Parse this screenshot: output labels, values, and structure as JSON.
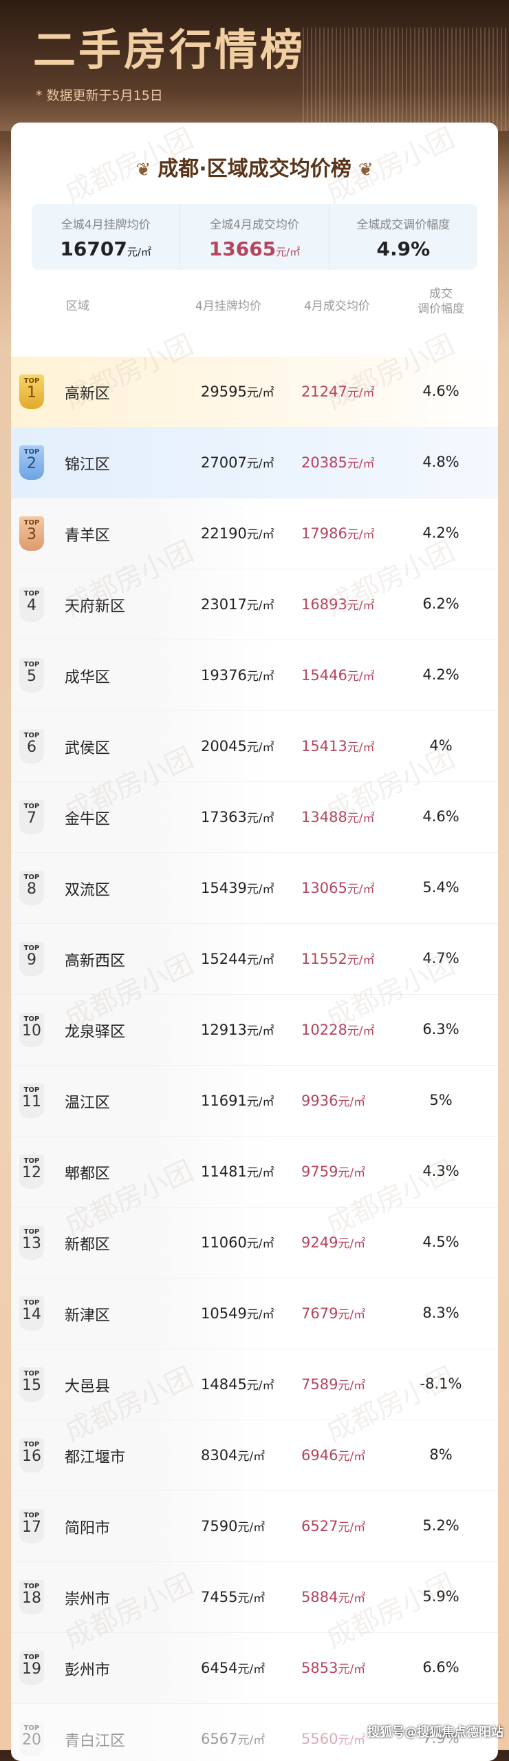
{
  "header": {
    "title": "二手房行情榜",
    "subtitle": "* 数据更新于5月15日"
  },
  "card": {
    "title": "成都·区域成交均价榜"
  },
  "summary": [
    {
      "label": "全城4月挂牌均价",
      "value": "16707",
      "unit": "元/㎡"
    },
    {
      "label": "全城4月成交均价",
      "value": "13665",
      "unit": "元/㎡"
    },
    {
      "label": "全城成交调价幅度",
      "value": "4.9%",
      "unit": ""
    }
  ],
  "columns": {
    "region": "区域",
    "listing": "4月挂牌均价",
    "deal": "4月成交均价",
    "pct1": "成交",
    "pct2": "调价幅度"
  },
  "unit": "元/㎡",
  "top_label": "TOP",
  "rows": [
    {
      "rank": "1",
      "name": "高新区",
      "listing": "29595",
      "deal": "21247",
      "pct": "4.6%"
    },
    {
      "rank": "2",
      "name": "锦江区",
      "listing": "27007",
      "deal": "20385",
      "pct": "4.8%"
    },
    {
      "rank": "3",
      "name": "青羊区",
      "listing": "22190",
      "deal": "17986",
      "pct": "4.2%"
    },
    {
      "rank": "4",
      "name": "天府新区",
      "listing": "23017",
      "deal": "16893",
      "pct": "6.2%"
    },
    {
      "rank": "5",
      "name": "成华区",
      "listing": "19376",
      "deal": "15446",
      "pct": "4.2%"
    },
    {
      "rank": "6",
      "name": "武侯区",
      "listing": "20045",
      "deal": "15413",
      "pct": "4%"
    },
    {
      "rank": "7",
      "name": "金牛区",
      "listing": "17363",
      "deal": "13488",
      "pct": "4.6%"
    },
    {
      "rank": "8",
      "name": "双流区",
      "listing": "15439",
      "deal": "13065",
      "pct": "5.4%"
    },
    {
      "rank": "9",
      "name": "高新西区",
      "listing": "15244",
      "deal": "11552",
      "pct": "4.7%"
    },
    {
      "rank": "10",
      "name": "龙泉驿区",
      "listing": "12913",
      "deal": "10228",
      "pct": "6.3%"
    },
    {
      "rank": "11",
      "name": "温江区",
      "listing": "11691",
      "deal": "9936",
      "pct": "5%"
    },
    {
      "rank": "12",
      "name": "郫都区",
      "listing": "11481",
      "deal": "9759",
      "pct": "4.3%"
    },
    {
      "rank": "13",
      "name": "新都区",
      "listing": "11060",
      "deal": "9249",
      "pct": "4.5%"
    },
    {
      "rank": "14",
      "name": "新津区",
      "listing": "10549",
      "deal": "7679",
      "pct": "8.3%"
    },
    {
      "rank": "15",
      "name": "大邑县",
      "listing": "14845",
      "deal": "7589",
      "pct": "-8.1%"
    },
    {
      "rank": "16",
      "name": "都江堰市",
      "listing": "8304",
      "deal": "6946",
      "pct": "8%"
    },
    {
      "rank": "17",
      "name": "简阳市",
      "listing": "7590",
      "deal": "6527",
      "pct": "5.2%"
    },
    {
      "rank": "18",
      "name": "崇州市",
      "listing": "7455",
      "deal": "5884",
      "pct": "5.9%"
    },
    {
      "rank": "19",
      "name": "彭州市",
      "listing": "6454",
      "deal": "5853",
      "pct": "6.6%"
    },
    {
      "rank": "20",
      "name": "青白江区",
      "listing": "6567",
      "deal": "5560",
      "pct": "7.9%"
    }
  ],
  "watermark": "成都房小团",
  "credit": "搜狐号@搜狐焦点德阳站"
}
